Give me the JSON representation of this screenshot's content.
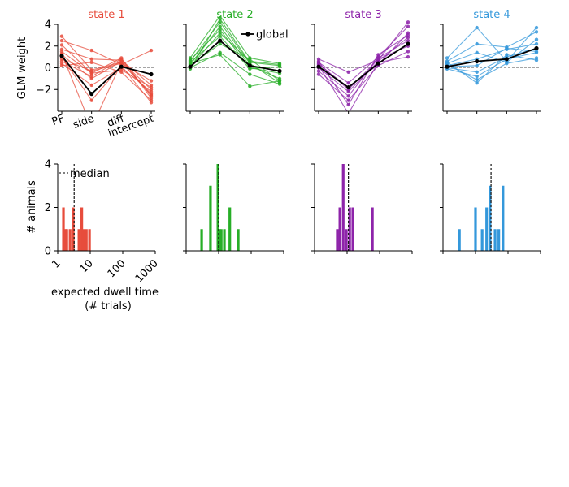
{
  "figure": {
    "top_ylabel": "GLM weight",
    "bottom_ylabel": "# animals",
    "bottom_xlabel_line1": "expected dwell time",
    "bottom_xlabel_line2": "(# trials)",
    "legend_global": "global",
    "legend_median": "median"
  },
  "chart_data": [
    {
      "type": "line",
      "title": "state 1",
      "color": "#e74c3c",
      "categories": [
        "PF",
        "side",
        "diff",
        "intercept"
      ],
      "ylim": [
        -4,
        4
      ],
      "yticks": [
        -2,
        0,
        2,
        4
      ],
      "global": [
        1.1,
        -2.4,
        0.1,
        -0.6
      ],
      "series": [
        [
          2.9,
          -0.2,
          0.5,
          -2.4
        ],
        [
          2.5,
          1.6,
          0.3,
          1.6
        ],
        [
          1.7,
          0.8,
          0.7,
          -1.6
        ],
        [
          1.5,
          -0.5,
          0.9,
          -2.8
        ],
        [
          1.2,
          -1.0,
          0.6,
          -2.0
        ],
        [
          1.0,
          -3.0,
          0.2,
          -3.2
        ],
        [
          0.8,
          -0.3,
          0.4,
          -1.2
        ],
        [
          0.6,
          -0.8,
          0.8,
          -2.6
        ],
        [
          0.4,
          -1.6,
          0.0,
          -2.2
        ],
        [
          0.2,
          0.5,
          -0.4,
          -3.0
        ],
        [
          1.3,
          -5.5,
          0.5,
          -2.5
        ],
        [
          2.1,
          -0.5,
          -0.2,
          -1.8
        ]
      ]
    },
    {
      "type": "line",
      "title": "state 2",
      "color": "#27ae27",
      "categories": [
        "PF",
        "side",
        "diff",
        "intercept"
      ],
      "ylim": [
        -4,
        4
      ],
      "yticks": [
        -2,
        0,
        2,
        4
      ],
      "global": [
        0.1,
        2.5,
        0.2,
        -0.3
      ],
      "series": [
        [
          0.9,
          4.8,
          0.9,
          0.4
        ],
        [
          0.6,
          4.2,
          0.4,
          -1.4
        ],
        [
          0.3,
          3.8,
          0.2,
          -1.0
        ],
        [
          0.1,
          3.2,
          0.6,
          0.3
        ],
        [
          0.5,
          2.9,
          -0.1,
          0.1
        ],
        [
          0.2,
          2.2,
          0.8,
          -1.2
        ],
        [
          0.0,
          1.4,
          -0.6,
          -1.5
        ],
        [
          0.4,
          1.2,
          -1.7,
          -1.2
        ],
        [
          -0.1,
          4.5,
          0.5,
          0.2
        ],
        [
          0.7,
          3.5,
          0.0,
          -0.5
        ]
      ]
    },
    {
      "type": "line",
      "title": "state 3",
      "color": "#8e24aa",
      "categories": [
        "PF",
        "side",
        "diff",
        "intercept"
      ],
      "ylim": [
        -4,
        4
      ],
      "yticks": [
        -2,
        0,
        2,
        4
      ],
      "global": [
        0.1,
        -1.8,
        0.4,
        2.2
      ],
      "series": [
        [
          0.8,
          -0.4,
          0.7,
          4.2
        ],
        [
          0.5,
          -1.4,
          1.0,
          3.8
        ],
        [
          0.3,
          -1.8,
          0.3,
          3.2
        ],
        [
          0.0,
          -2.2,
          0.6,
          2.8
        ],
        [
          -0.3,
          -2.6,
          0.9,
          2.5
        ],
        [
          -0.6,
          -3.0,
          0.2,
          1.5
        ],
        [
          0.6,
          -3.4,
          1.2,
          3.0
        ],
        [
          0.2,
          -4.2,
          0.5,
          1.0
        ],
        [
          0.4,
          -2.0,
          0.8,
          2.0
        ]
      ]
    },
    {
      "type": "line",
      "title": "state 4",
      "color": "#3498db",
      "categories": [
        "PF",
        "side",
        "diff",
        "intercept"
      ],
      "ylim": [
        -4,
        4
      ],
      "yticks": [
        -2,
        0,
        2,
        4
      ],
      "global": [
        0.1,
        0.6,
        0.8,
        1.8
      ],
      "series": [
        [
          0.9,
          3.7,
          0.6,
          3.7
        ],
        [
          0.6,
          2.2,
          1.9,
          3.3
        ],
        [
          0.4,
          1.4,
          0.5,
          2.6
        ],
        [
          0.2,
          0.8,
          1.7,
          2.2
        ],
        [
          0.0,
          -0.4,
          1.0,
          1.8
        ],
        [
          -0.1,
          -0.8,
          0.8,
          1.4
        ],
        [
          0.3,
          -1.1,
          0.4,
          0.9
        ],
        [
          0.5,
          -1.4,
          1.2,
          0.7
        ],
        [
          0.1,
          0.2,
          1.8,
          1.5
        ]
      ]
    },
    {
      "type": "bar",
      "subtype": "histogram",
      "color": "#e74c3c",
      "x_scale": "log",
      "xlim": [
        1,
        1000
      ],
      "xticks": [
        "1",
        "10",
        "100",
        "1000"
      ],
      "ylim": [
        0,
        4
      ],
      "yticks": [
        0,
        2,
        4
      ],
      "median": 3.2,
      "bins": [
        {
          "x": 1.5,
          "count": 2
        },
        {
          "x": 1.7,
          "count": 1
        },
        {
          "x": 1.9,
          "count": 1
        },
        {
          "x": 2.4,
          "count": 1
        },
        {
          "x": 3.0,
          "count": 2
        },
        {
          "x": 4.5,
          "count": 1
        },
        {
          "x": 5.5,
          "count": 2
        },
        {
          "x": 6.5,
          "count": 1
        },
        {
          "x": 7.6,
          "count": 1
        },
        {
          "x": 9.5,
          "count": 1
        }
      ]
    },
    {
      "type": "bar",
      "subtype": "histogram",
      "color": "#27ae27",
      "x_scale": "log",
      "xlim": [
        1,
        1000
      ],
      "ylim": [
        0,
        4
      ],
      "yticks": [
        0,
        2,
        4
      ],
      "median": 10,
      "bins": [
        {
          "x": 3.0,
          "count": 1
        },
        {
          "x": 5.6,
          "count": 3
        },
        {
          "x": 9.5,
          "count": 4
        },
        {
          "x": 10.6,
          "count": 1
        },
        {
          "x": 12.0,
          "count": 1
        },
        {
          "x": 15.0,
          "count": 1
        },
        {
          "x": 22.0,
          "count": 2
        },
        {
          "x": 40.0,
          "count": 1
        }
      ]
    },
    {
      "type": "bar",
      "subtype": "histogram",
      "color": "#8e24aa",
      "x_scale": "log",
      "xlim": [
        1,
        1000
      ],
      "ylim": [
        0,
        4
      ],
      "yticks": [
        0,
        2,
        4
      ],
      "median": 11,
      "bins": [
        {
          "x": 5.0,
          "count": 1
        },
        {
          "x": 6.0,
          "count": 2
        },
        {
          "x": 7.6,
          "count": 4
        },
        {
          "x": 9.5,
          "count": 1
        },
        {
          "x": 12.0,
          "count": 2
        },
        {
          "x": 15.0,
          "count": 2
        },
        {
          "x": 60.0,
          "count": 2
        }
      ]
    },
    {
      "type": "bar",
      "subtype": "histogram",
      "color": "#3498db",
      "x_scale": "log",
      "xlim": [
        1,
        1000
      ],
      "ylim": [
        0,
        4
      ],
      "yticks": [
        0,
        2,
        4
      ],
      "median": 30,
      "bins": [
        {
          "x": 3.2,
          "count": 1
        },
        {
          "x": 10.0,
          "count": 2
        },
        {
          "x": 16.0,
          "count": 1
        },
        {
          "x": 22.0,
          "count": 2
        },
        {
          "x": 28.0,
          "count": 3
        },
        {
          "x": 40.0,
          "count": 1
        },
        {
          "x": 52.0,
          "count": 1
        },
        {
          "x": 70.0,
          "count": 3
        }
      ]
    }
  ]
}
